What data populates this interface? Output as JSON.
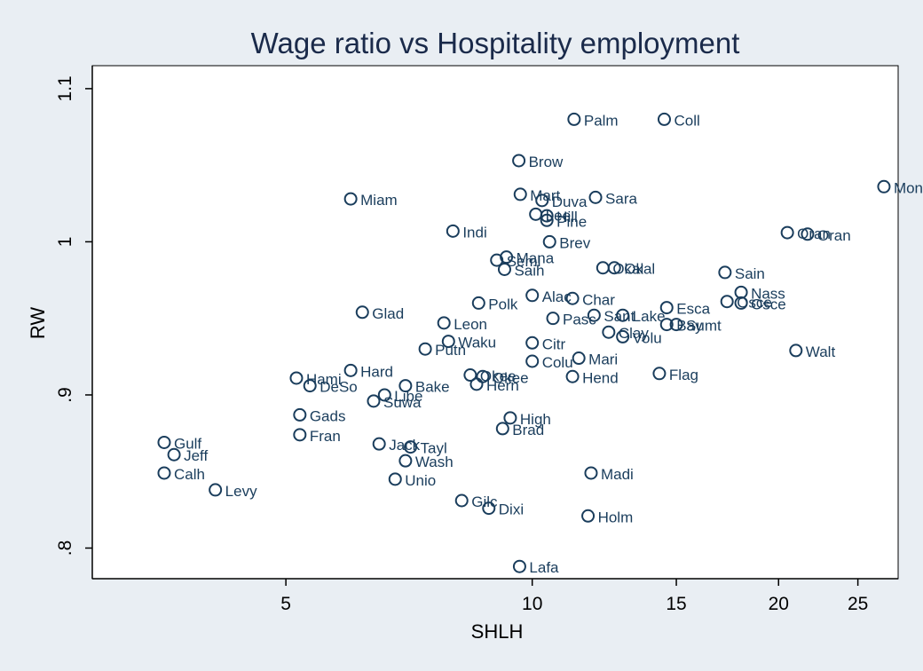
{
  "chart_data": {
    "type": "scatter",
    "title": "Wage ratio vs Hospitality employment",
    "xlabel": "SHLH",
    "ylabel": "RW",
    "x_scale": "log",
    "xlim": [
      2.9,
      28.0
    ],
    "ylim": [
      0.78,
      1.115
    ],
    "x_ticks": [
      {
        "value": 5,
        "label": "5"
      },
      {
        "value": 10,
        "label": "10"
      },
      {
        "value": 15,
        "label": "15"
      },
      {
        "value": 20,
        "label": "20"
      },
      {
        "value": 25,
        "label": "25"
      }
    ],
    "y_ticks": [
      {
        "value": 0.8,
        "label": ".8"
      },
      {
        "value": 0.9,
        "label": ".9"
      },
      {
        "value": 1.0,
        "label": "1"
      },
      {
        "value": 1.1,
        "label": "1.1"
      }
    ],
    "grid": false,
    "points": [
      {
        "label": "Palm",
        "x": 11.25,
        "y": 1.08
      },
      {
        "label": "Coll",
        "x": 14.5,
        "y": 1.08
      },
      {
        "label": "Brow",
        "x": 9.63,
        "y": 1.053
      },
      {
        "label": "Mart",
        "x": 9.67,
        "y": 1.031
      },
      {
        "label": "Duva",
        "x": 10.28,
        "y": 1.027
      },
      {
        "label": "Sara",
        "x": 11.95,
        "y": 1.029
      },
      {
        "label": "Monr",
        "x": 26.9,
        "y": 1.036
      },
      {
        "label": "Miam",
        "x": 6.0,
        "y": 1.028
      },
      {
        "label": "Lee",
        "x": 10.1,
        "y": 1.018
      },
      {
        "label": "Hill",
        "x": 10.42,
        "y": 1.017
      },
      {
        "label": "Pine",
        "x": 10.42,
        "y": 1.014
      },
      {
        "label": "Indi",
        "x": 8.0,
        "y": 1.007
      },
      {
        "label": "Brev",
        "x": 10.5,
        "y": 1.0
      },
      {
        "label": "Oran",
        "x": 20.5,
        "y": 1.006
      },
      {
        "label": "Oran",
        "x": 21.7,
        "y": 1.005
      },
      {
        "label": "Mana",
        "x": 9.3,
        "y": 0.99
      },
      {
        "label": "Semi",
        "x": 9.05,
        "y": 0.988
      },
      {
        "label": "Saih",
        "x": 9.25,
        "y": 0.982
      },
      {
        "label": "Okal",
        "x": 12.2,
        "y": 0.983
      },
      {
        "label": "Okal",
        "x": 12.6,
        "y": 0.983
      },
      {
        "label": "Sain",
        "x": 17.2,
        "y": 0.98
      },
      {
        "label": "Alac",
        "x": 10.0,
        "y": 0.965
      },
      {
        "label": "Char",
        "x": 11.2,
        "y": 0.963
      },
      {
        "label": "Polk",
        "x": 8.6,
        "y": 0.96
      },
      {
        "label": "Nass",
        "x": 18.0,
        "y": 0.967
      },
      {
        "label": "Osce",
        "x": 17.3,
        "y": 0.961
      },
      {
        "label": "Osce",
        "x": 18.0,
        "y": 0.96
      },
      {
        "label": "Esca",
        "x": 14.6,
        "y": 0.957
      },
      {
        "label": "Glad",
        "x": 6.2,
        "y": 0.954
      },
      {
        "label": "Pasc",
        "x": 10.6,
        "y": 0.95
      },
      {
        "label": "Sant",
        "x": 11.9,
        "y": 0.952
      },
      {
        "label": "Lake",
        "x": 12.9,
        "y": 0.952
      },
      {
        "label": "Sumt",
        "x": 15.0,
        "y": 0.946
      },
      {
        "label": "Bay",
        "x": 14.6,
        "y": 0.946
      },
      {
        "label": "Leon",
        "x": 7.8,
        "y": 0.947
      },
      {
        "label": "Clay",
        "x": 12.4,
        "y": 0.941
      },
      {
        "label": "Volu",
        "x": 12.9,
        "y": 0.938
      },
      {
        "label": "Waku",
        "x": 7.9,
        "y": 0.935
      },
      {
        "label": "Citr",
        "x": 10.0,
        "y": 0.934
      },
      {
        "label": "Putn",
        "x": 7.4,
        "y": 0.93
      },
      {
        "label": "Walt",
        "x": 21.0,
        "y": 0.929
      },
      {
        "label": "Mari",
        "x": 11.4,
        "y": 0.924
      },
      {
        "label": "Colu",
        "x": 10.0,
        "y": 0.922
      },
      {
        "label": "Hard",
        "x": 6.0,
        "y": 0.916
      },
      {
        "label": "Flag",
        "x": 14.3,
        "y": 0.914
      },
      {
        "label": "Hend",
        "x": 11.2,
        "y": 0.912
      },
      {
        "label": "Okee",
        "x": 8.7,
        "y": 0.912
      },
      {
        "label": "Okee",
        "x": 8.4,
        "y": 0.913
      },
      {
        "label": "Hami",
        "x": 5.15,
        "y": 0.911
      },
      {
        "label": "DeSo",
        "x": 5.35,
        "y": 0.906
      },
      {
        "label": "Hern",
        "x": 8.55,
        "y": 0.907
      },
      {
        "label": "Bake",
        "x": 7.0,
        "y": 0.906
      },
      {
        "label": "Libe",
        "x": 6.6,
        "y": 0.9
      },
      {
        "label": "Suwa",
        "x": 6.4,
        "y": 0.896
      },
      {
        "label": "Gads",
        "x": 5.2,
        "y": 0.887
      },
      {
        "label": "High",
        "x": 9.4,
        "y": 0.885
      },
      {
        "label": "Brad",
        "x": 9.2,
        "y": 0.878
      },
      {
        "label": "Fran",
        "x": 5.2,
        "y": 0.874
      },
      {
        "label": "Gulf",
        "x": 3.55,
        "y": 0.869
      },
      {
        "label": "Jack",
        "x": 6.5,
        "y": 0.868
      },
      {
        "label": "Tayl",
        "x": 7.1,
        "y": 0.866
      },
      {
        "label": "Jeff",
        "x": 3.65,
        "y": 0.861
      },
      {
        "label": "Wash",
        "x": 7.0,
        "y": 0.857
      },
      {
        "label": "Calh",
        "x": 3.55,
        "y": 0.849
      },
      {
        "label": "Madi",
        "x": 11.8,
        "y": 0.849
      },
      {
        "label": "Unio",
        "x": 6.8,
        "y": 0.845
      },
      {
        "label": "Levy",
        "x": 4.1,
        "y": 0.838
      },
      {
        "label": "Gilc",
        "x": 8.2,
        "y": 0.831
      },
      {
        "label": "Dixi",
        "x": 8.85,
        "y": 0.826
      },
      {
        "label": "Holm",
        "x": 11.7,
        "y": 0.821
      },
      {
        "label": "Lafa",
        "x": 9.65,
        "y": 0.788
      }
    ]
  }
}
